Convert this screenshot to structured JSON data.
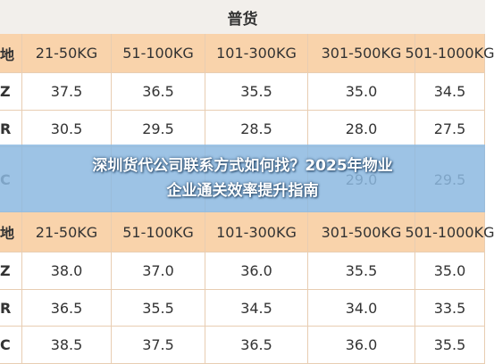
{
  "title": "普货",
  "tables": [
    {
      "header": [
        "地",
        "21-50KG",
        "51-100KG",
        "101-300KG",
        "301-500KG",
        "501-1000KG"
      ],
      "rows": [
        [
          "Z",
          "37.5",
          "36.5",
          "35.5",
          "35.0",
          "34.5"
        ],
        [
          "R",
          "30.5",
          "29.5",
          "28.5",
          "28.0",
          "27.5"
        ],
        [
          "C",
          null,
          null,
          null,
          "29.0",
          "29.5"
        ]
      ]
    },
    {
      "header": [
        "地",
        "21-50KG",
        "51-100KG",
        "101-300KG",
        "301-500KG",
        "501-1000KG"
      ],
      "rows": [
        [
          "Z",
          "38.0",
          "37.0",
          "36.0",
          "35.5",
          "35.0"
        ],
        [
          "R",
          "36.5",
          "35.5",
          "34.5",
          "34.0",
          "33.5"
        ],
        [
          "C",
          "38.5",
          "37.5",
          "36.5",
          "36.0",
          "35.5"
        ]
      ]
    }
  ],
  "banner": {
    "lines": [
      "深圳货代公司联系方式如何找？2025年物业",
      "企业通关效率提升指南"
    ]
  }
}
